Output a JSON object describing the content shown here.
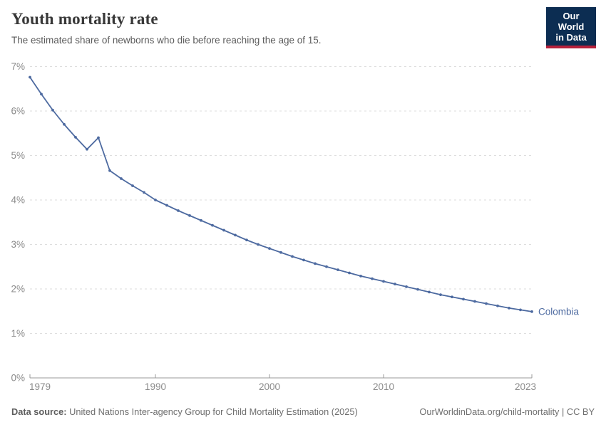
{
  "header": {
    "title": "Youth mortality rate",
    "subtitle": "The estimated share of newborns who die before reaching the age of 15.",
    "logo": {
      "line1": "Our World",
      "line2": "in Data"
    }
  },
  "chart_data": {
    "type": "line",
    "title": "Youth mortality rate",
    "subtitle": "The estimated share of newborns who die before reaching the age of 15.",
    "entity_label": "Colombia",
    "series": [
      {
        "name": "Colombia",
        "color": "#4d6aa0",
        "x": [
          1979,
          1980,
          1981,
          1982,
          1983,
          1984,
          1985,
          1986,
          1987,
          1988,
          1989,
          1990,
          1991,
          1992,
          1993,
          1994,
          1995,
          1996,
          1997,
          1998,
          1999,
          2000,
          2001,
          2002,
          2003,
          2004,
          2005,
          2006,
          2007,
          2008,
          2009,
          2010,
          2011,
          2012,
          2013,
          2014,
          2015,
          2016,
          2017,
          2018,
          2019,
          2020,
          2021,
          2022,
          2023
        ],
        "values": [
          6.76,
          6.38,
          6.02,
          5.7,
          5.41,
          5.14,
          5.4,
          4.66,
          4.48,
          4.32,
          4.17,
          4.0,
          3.88,
          3.76,
          3.65,
          3.54,
          3.43,
          3.32,
          3.21,
          3.1,
          3.0,
          2.91,
          2.82,
          2.73,
          2.65,
          2.57,
          2.5,
          2.43,
          2.36,
          2.29,
          2.23,
          2.17,
          2.11,
          2.05,
          1.99,
          1.93,
          1.87,
          1.82,
          1.77,
          1.72,
          1.67,
          1.62,
          1.57,
          1.53,
          1.49
        ]
      }
    ],
    "xlabel": "",
    "ylabel": "",
    "xlim": [
      1979,
      2023
    ],
    "ylim": [
      0,
      7
    ],
    "x_ticks": [
      1979,
      1990,
      2000,
      2010,
      2023
    ],
    "y_ticks": [
      "0%",
      "1%",
      "2%",
      "3%",
      "4%",
      "5%",
      "6%",
      "7%"
    ],
    "grid": "horizontal-dashed",
    "legend_position": "end-of-line-label",
    "markers": true
  },
  "footer": {
    "datasource_label": "Data source:",
    "datasource_value": "United Nations Inter-agency Group for Child Mortality Estimation (2025)",
    "link": "OurWorldinData.org/child-mortality | CC BY"
  },
  "colors": {
    "line": "#4d6aa0",
    "grid": "#dedede",
    "axis": "#999999",
    "tick_label": "#8a8a8a",
    "title": "#383838",
    "subtitle": "#5b5b5b",
    "logo_bg": "#0c2d52",
    "logo_red": "#b6213b"
  }
}
